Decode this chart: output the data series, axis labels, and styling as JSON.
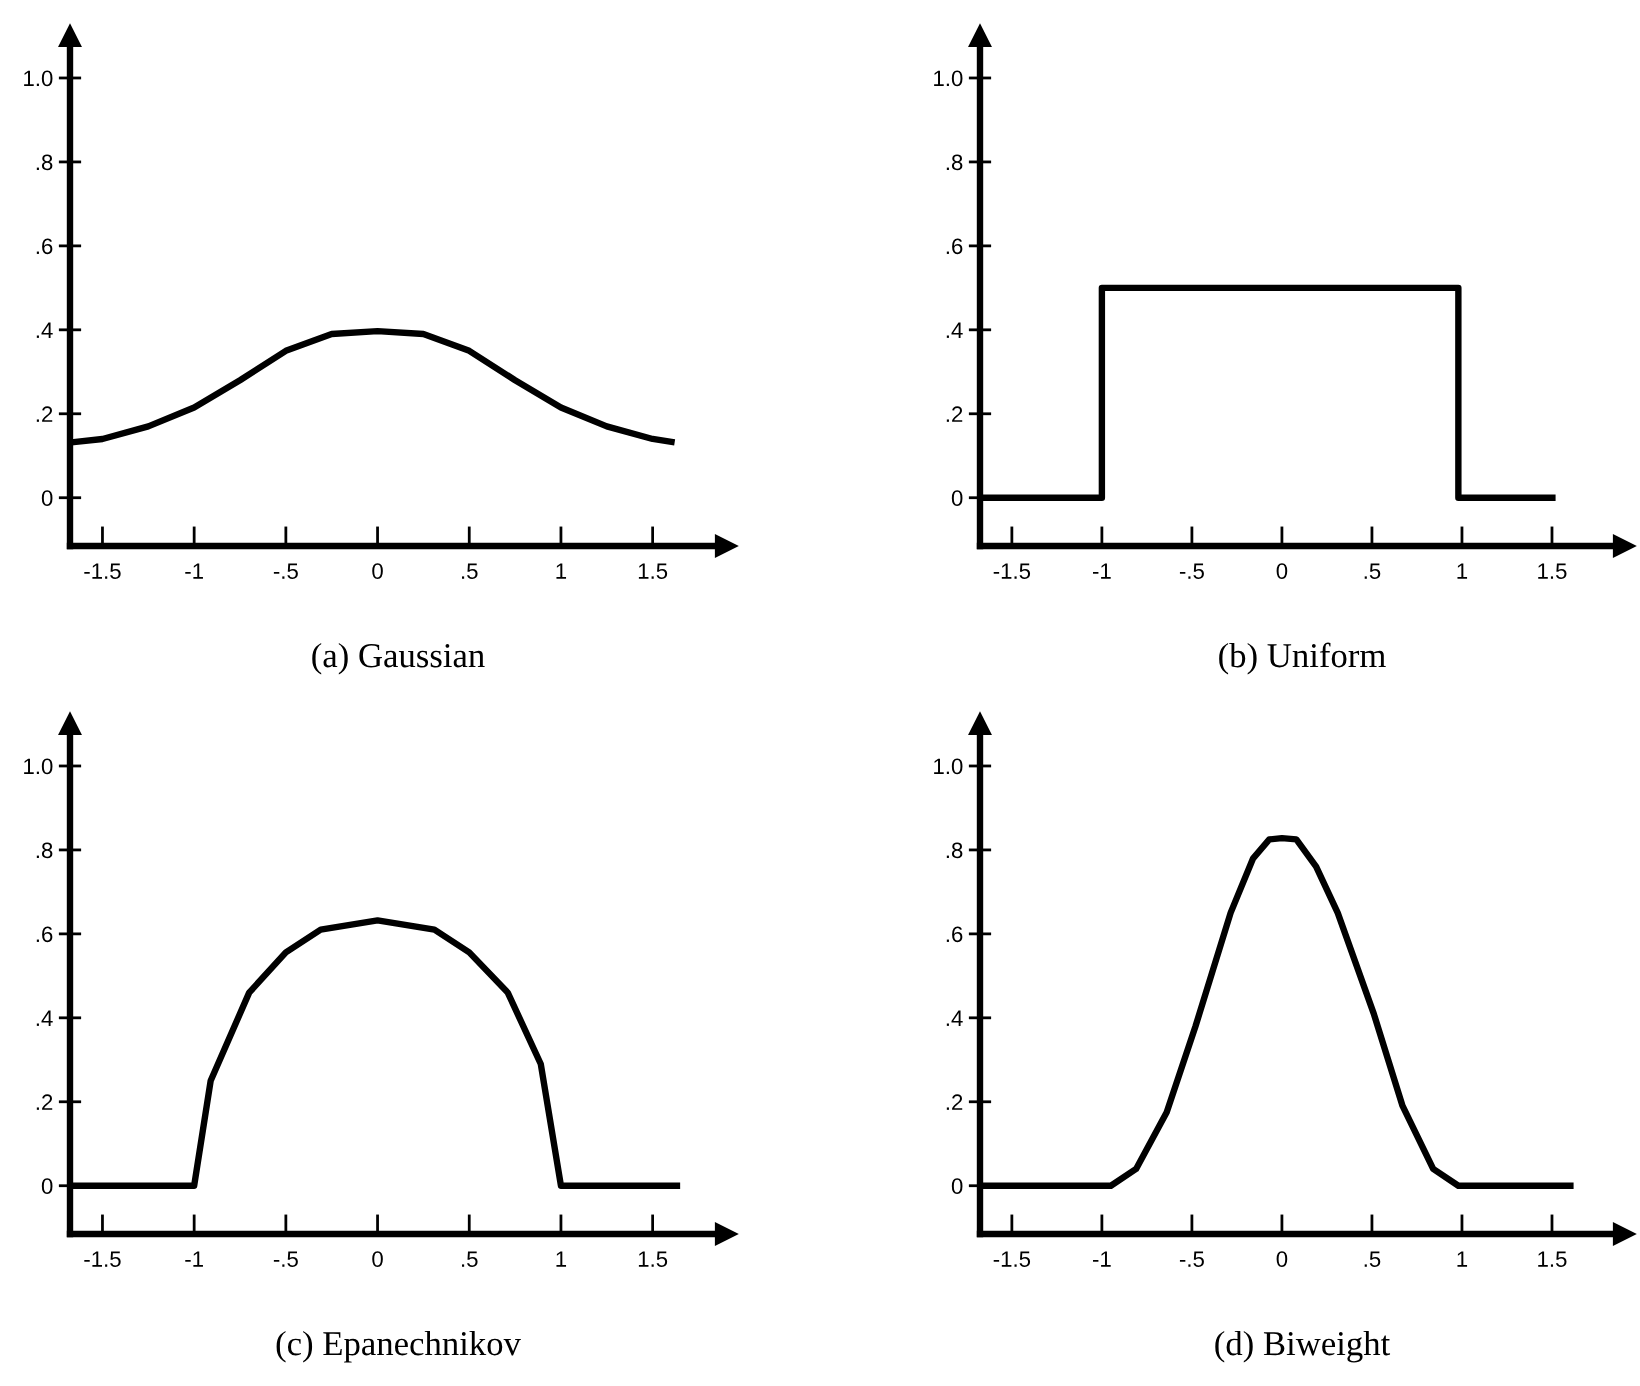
{
  "chart_data": [
    {
      "type": "line",
      "title": "(a) Gaussian",
      "xlim": [
        -1.677,
        1.9
      ],
      "ylim": [
        -0.115,
        1.1
      ],
      "xticks": [
        {
          "value": -1.5,
          "label": "-1.5"
        },
        {
          "value": -1,
          "label": "-1"
        },
        {
          "value": -0.5,
          "label": "-.5"
        },
        0,
        {
          "value": 0.5,
          "label": ".5"
        },
        1,
        1.5
      ],
      "yticks": [
        0,
        {
          "value": 0.2,
          "label": ".2"
        },
        {
          "value": 0.4,
          "label": ".4"
        },
        {
          "value": 0.6,
          "label": ".6"
        },
        {
          "value": 0.8,
          "label": ".8"
        },
        {
          "value": 1,
          "label": "1.0"
        }
      ],
      "series": [
        {
          "color": "#000000",
          "x": [
            -1.67,
            -1.5,
            -1.25,
            -1,
            -0.75,
            -0.5,
            -0.25,
            0,
            0.25,
            0.5,
            0.75,
            1,
            1.25,
            1.5,
            1.62
          ],
          "values": [
            0.132,
            0.14,
            0.17,
            0.215,
            0.28,
            0.35,
            0.39,
            0.397,
            0.39,
            0.35,
            0.28,
            0.215,
            0.17,
            0.14,
            0.132
          ]
        }
      ]
    },
    {
      "type": "line",
      "title": "(b) Uniform",
      "xlim": [
        -1.677,
        1.9
      ],
      "ylim": [
        -0.115,
        1.1
      ],
      "xticks": [
        {
          "value": -1.5,
          "label": "-1.5"
        },
        {
          "value": -1,
          "label": "-1"
        },
        {
          "value": -0.5,
          "label": "-.5"
        },
        0,
        {
          "value": 0.5,
          "label": ".5"
        },
        1,
        1.5
      ],
      "yticks": [
        0,
        {
          "value": 0.2,
          "label": ".2"
        },
        {
          "value": 0.4,
          "label": ".4"
        },
        {
          "value": 0.6,
          "label": ".6"
        },
        {
          "value": 0.8,
          "label": ".8"
        },
        {
          "value": 1,
          "label": "1.0"
        }
      ],
      "series": [
        {
          "color": "#000000",
          "x": [
            -1.67,
            -1,
            -1,
            0.98,
            0.98,
            1.52
          ],
          "values": [
            0,
            0,
            0.5,
            0.5,
            0,
            0
          ]
        }
      ]
    },
    {
      "type": "line",
      "title": "(c) Epanechnikov",
      "xlim": [
        -1.677,
        1.9
      ],
      "ylim": [
        -0.115,
        1.1
      ],
      "xticks": [
        {
          "value": -1.5,
          "label": "-1.5"
        },
        {
          "value": -1,
          "label": "-1"
        },
        {
          "value": -0.5,
          "label": "-.5"
        },
        0,
        {
          "value": 0.5,
          "label": ".5"
        },
        1,
        1.5
      ],
      "yticks": [
        0,
        {
          "value": 0.2,
          "label": ".2"
        },
        {
          "value": 0.4,
          "label": ".4"
        },
        {
          "value": 0.6,
          "label": ".6"
        },
        {
          "value": 0.8,
          "label": ".8"
        },
        {
          "value": 1,
          "label": "1.0"
        }
      ],
      "series": [
        {
          "color": "#000000",
          "x": [
            -1.67,
            -1,
            -0.91,
            -0.7,
            -0.5,
            -0.31,
            0,
            0.31,
            0.5,
            0.71,
            0.89,
            1,
            1.65
          ],
          "values": [
            0,
            0,
            0.25,
            0.46,
            0.556,
            0.61,
            0.632,
            0.61,
            0.556,
            0.46,
            0.29,
            0,
            0
          ]
        }
      ]
    },
    {
      "type": "line",
      "title": "(d) Biweight",
      "xlim": [
        -1.677,
        1.9
      ],
      "ylim": [
        -0.115,
        1.1
      ],
      "xticks": [
        {
          "value": -1.5,
          "label": "-1.5"
        },
        {
          "value": -1,
          "label": "-1"
        },
        {
          "value": -0.5,
          "label": "-.5"
        },
        0,
        {
          "value": 0.5,
          "label": ".5"
        },
        1,
        1.5
      ],
      "yticks": [
        0,
        {
          "value": 0.2,
          "label": ".2"
        },
        {
          "value": 0.4,
          "label": ".4"
        },
        {
          "value": 0.6,
          "label": ".6"
        },
        {
          "value": 0.8,
          "label": ".8"
        },
        {
          "value": 1,
          "label": "1.0"
        }
      ],
      "series": [
        {
          "color": "#000000",
          "x": [
            -1.67,
            -0.95,
            -0.81,
            -0.64,
            -0.48,
            -0.285,
            -0.16,
            -0.07,
            0,
            0.08,
            0.19,
            0.31,
            0.51,
            0.67,
            0.84,
            0.98,
            1.62
          ],
          "values": [
            0,
            0,
            0.04,
            0.175,
            0.38,
            0.65,
            0.78,
            0.825,
            0.828,
            0.825,
            0.76,
            0.65,
            0.41,
            0.19,
            0.04,
            0,
            0
          ]
        }
      ]
    }
  ]
}
